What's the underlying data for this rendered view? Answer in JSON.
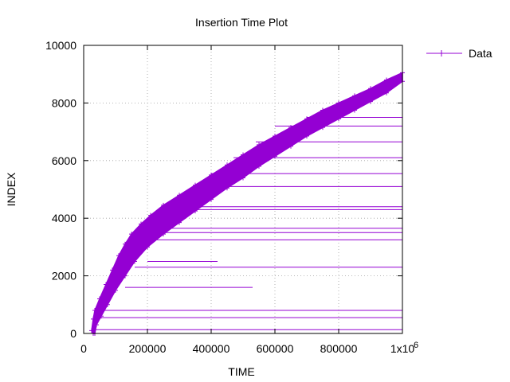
{
  "chart_data": {
    "type": "scatter",
    "title": "Insertion Time Plot",
    "xlabel": "TIME",
    "ylabel": "INDEX",
    "xlim": [
      0,
      1000000
    ],
    "ylim": [
      0,
      10000
    ],
    "xtick_labels": [
      "0",
      "200000",
      "400000",
      "600000",
      "800000",
      "1x10"
    ],
    "xtick_values": [
      0,
      200000,
      400000,
      600000,
      800000,
      1000000
    ],
    "x_exponent_label": "6",
    "ytick_labels": [
      "0",
      "2000",
      "4000",
      "6000",
      "8000",
      "10000"
    ],
    "ytick_values": [
      0,
      2000,
      4000,
      6000,
      8000,
      10000
    ],
    "grid": true,
    "legend": {
      "position": "top-right",
      "entries": [
        "Data"
      ]
    },
    "series": [
      {
        "name": "Data",
        "color": "#9400d3",
        "marker": "plus",
        "points": [
          [
            25000,
            100
          ],
          [
            30000,
            500
          ],
          [
            35000,
            800
          ],
          [
            50000,
            1200
          ],
          [
            70000,
            1700
          ],
          [
            90000,
            2200
          ],
          [
            110000,
            2700
          ],
          [
            130000,
            3100
          ],
          [
            150000,
            3450
          ],
          [
            180000,
            3800
          ],
          [
            210000,
            4100
          ],
          [
            250000,
            4450
          ],
          [
            300000,
            4800
          ],
          [
            350000,
            5150
          ],
          [
            400000,
            5500
          ],
          [
            450000,
            5850
          ],
          [
            500000,
            6200
          ],
          [
            550000,
            6550
          ],
          [
            600000,
            6850
          ],
          [
            650000,
            7150
          ],
          [
            700000,
            7450
          ],
          [
            750000,
            7750
          ],
          [
            800000,
            8000
          ],
          [
            850000,
            8250
          ],
          [
            900000,
            8500
          ],
          [
            950000,
            8800
          ],
          [
            1000000,
            9050
          ],
          [
            1000000,
            8750
          ],
          [
            950000,
            8350
          ],
          [
            900000,
            8050
          ],
          [
            850000,
            7750
          ],
          [
            800000,
            7450
          ],
          [
            750000,
            7150
          ],
          [
            700000,
            6850
          ],
          [
            650000,
            6500
          ],
          [
            600000,
            6150
          ],
          [
            550000,
            5800
          ],
          [
            500000,
            5400
          ],
          [
            450000,
            5050
          ],
          [
            400000,
            4650
          ],
          [
            350000,
            4250
          ],
          [
            300000,
            3850
          ],
          [
            250000,
            3450
          ],
          [
            200000,
            3000
          ],
          [
            160000,
            2500
          ],
          [
            130000,
            2000
          ],
          [
            100000,
            1500
          ],
          [
            75000,
            1000
          ],
          [
            55000,
            600
          ],
          [
            40000,
            300
          ],
          [
            35000,
            0
          ],
          [
            30000,
            0
          ]
        ],
        "outlier_segments": [
          [
            30000,
            130,
            1000000,
            130
          ],
          [
            40000,
            550,
            1000000,
            550
          ],
          [
            60000,
            800,
            1000000,
            800
          ],
          [
            130000,
            1600,
            530000,
            1600
          ],
          [
            160000,
            2300,
            1000000,
            2300
          ],
          [
            200000,
            2500,
            420000,
            2500
          ],
          [
            230000,
            3250,
            1000000,
            3250
          ],
          [
            240000,
            3500,
            1000000,
            3500
          ],
          [
            250000,
            3650,
            1000000,
            3650
          ],
          [
            280000,
            4300,
            1000000,
            4300
          ],
          [
            300000,
            4400,
            1000000,
            4400
          ],
          [
            360000,
            5100,
            1000000,
            5100
          ],
          [
            400000,
            5550,
            1000000,
            5550
          ],
          [
            470000,
            6100,
            1000000,
            6100
          ],
          [
            540000,
            6650,
            1000000,
            6650
          ],
          [
            600000,
            7200,
            1000000,
            7200
          ],
          [
            700000,
            7500,
            1000000,
            7500
          ]
        ]
      }
    ]
  }
}
